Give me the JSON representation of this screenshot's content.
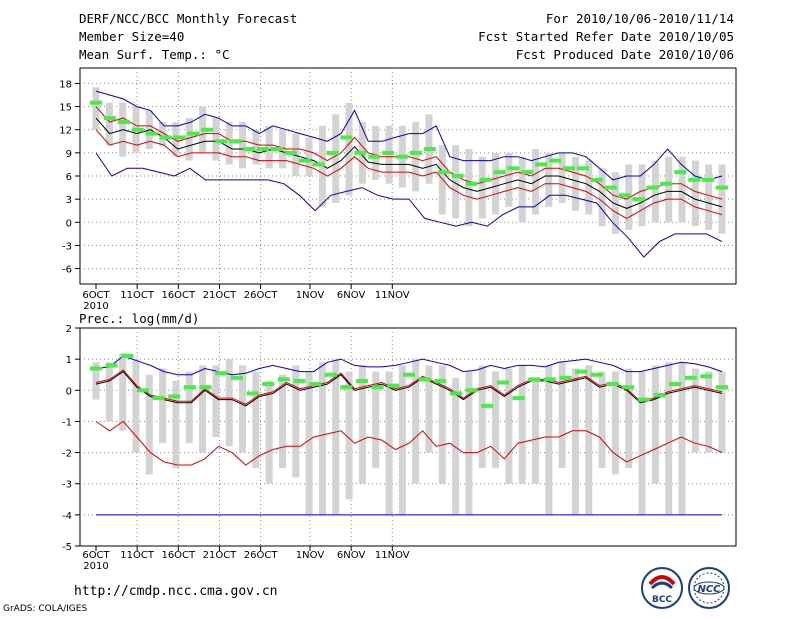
{
  "header": {
    "title": "DERF/NCC/BCC Monthly Forecast",
    "member_size": "Member Size=40",
    "variable": "Mean Surf. Temp.: °C",
    "period": "For 2010/10/06-2010/11/14",
    "started": "Fcst Started Refer Date 2010/10/05",
    "produced": "Fcst Produced Date 2010/10/06"
  },
  "footer": {
    "url": "http://cmdp.ncc.cma.gov.cn",
    "credit": "GrADS: COLA/IGES",
    "logo_left_text": "BCC",
    "logo_right_text": "NCC"
  },
  "colors": {
    "box": "#d3d3d3",
    "mean": "#000000",
    "red": "#dd0000",
    "blue": "#0000cc",
    "green": "#44ee44",
    "grid": "#888888"
  },
  "chart_data": [
    {
      "type": "box",
      "title": "Mean Surf. Temp.: °C",
      "ylim": [
        -8,
        20
      ],
      "yticks": [
        -6,
        -3,
        0,
        3,
        6,
        9,
        12,
        15,
        18
      ],
      "xtick_labels": [
        "6OCT",
        "11OCT",
        "16OCT",
        "21OCT",
        "26OCT",
        "1NOV",
        "6NOV",
        "11NOV"
      ],
      "xtick_days": [
        1,
        6,
        11,
        16,
        21,
        27,
        32,
        37
      ],
      "year_label": "2010",
      "days": 40,
      "series": [
        {
          "name": "box_high",
          "values": [
            17.5,
            15.5,
            15.5,
            15,
            14.5,
            13,
            13,
            13.5,
            15,
            13.5,
            13,
            13,
            12,
            12.5,
            12,
            11.5,
            11,
            12.5,
            14,
            15.5,
            13,
            12.5,
            12.5,
            12.5,
            13,
            14,
            10,
            10,
            9.5,
            8.5,
            9,
            9,
            8.5,
            9.5,
            9,
            9,
            8.5,
            8,
            7,
            6.5,
            7.5,
            7.5,
            8,
            8.5,
            8.5,
            8,
            7.5,
            7.5
          ]
        },
        {
          "name": "box_low",
          "values": [
            12,
            10,
            8.5,
            9,
            9.5,
            10,
            8.5,
            8,
            9,
            8,
            7.5,
            7,
            7.5,
            7,
            7,
            6,
            6,
            2,
            2.5,
            3.5,
            5,
            5.5,
            5,
            4.5,
            4,
            5,
            1,
            0.5,
            -0.5,
            0.5,
            1,
            2,
            0,
            1,
            2,
            2.5,
            1.5,
            1,
            -0.5,
            -1.5,
            -1,
            -0.5,
            0,
            0,
            0,
            -0.5,
            -1,
            -1.5
          ]
        },
        {
          "name": "mean",
          "values": [
            13.5,
            11.5,
            12,
            11.5,
            12,
            11,
            9.5,
            10,
            10.5,
            10.5,
            9.5,
            9.5,
            9,
            9.5,
            9,
            8.5,
            8,
            7,
            8,
            9.8,
            7.8,
            7.5,
            7.5,
            7.5,
            7,
            7.5,
            5.5,
            4.5,
            4,
            4.5,
            5,
            5.5,
            5,
            6,
            6,
            5.5,
            5,
            4,
            2.5,
            1.8,
            2.5,
            3.5,
            4,
            4,
            3,
            2.5,
            2
          ]
        },
        {
          "name": "red_upper",
          "values": [
            15,
            13,
            13.5,
            12.5,
            12.5,
            11.5,
            10.5,
            11,
            11.5,
            11.5,
            10.5,
            10.5,
            10,
            10,
            9.5,
            9.5,
            9,
            8,
            9,
            11,
            9,
            8.5,
            8.5,
            8.5,
            8,
            8.5,
            6.5,
            5.5,
            5,
            5.5,
            6,
            6.5,
            6,
            7,
            7,
            6.5,
            6,
            5,
            3.5,
            3,
            4,
            4.5,
            5,
            5,
            4,
            3.5,
            3
          ]
        },
        {
          "name": "red_lower",
          "values": [
            12,
            10,
            10.5,
            10,
            10.5,
            10,
            8.5,
            9,
            9,
            9,
            8.5,
            8.5,
            8,
            8,
            8,
            7.5,
            7,
            6,
            7,
            8.5,
            7,
            6.5,
            6.5,
            6.5,
            6,
            6.5,
            4.5,
            3.5,
            3,
            3.5,
            4,
            4.5,
            4,
            5,
            5,
            4.5,
            4,
            3,
            1.5,
            0.5,
            1.5,
            2.5,
            3,
            3,
            2,
            1.5,
            1
          ]
        },
        {
          "name": "blue_upper",
          "values": [
            17,
            16.5,
            16,
            15,
            14.5,
            12.5,
            12.5,
            13,
            14,
            13.5,
            12.5,
            12.5,
            11.5,
            12.5,
            12,
            11.5,
            11,
            10.5,
            11.5,
            14.5,
            10.5,
            10.5,
            11,
            11.5,
            11.5,
            12.5,
            8.5,
            8,
            8,
            8,
            8.5,
            8.5,
            8,
            8.5,
            9,
            9,
            8.5,
            7,
            5.5,
            6,
            6,
            7.5,
            9.5,
            7.5,
            6,
            5.5,
            6
          ]
        },
        {
          "name": "blue_lower",
          "values": [
            9,
            6,
            7,
            7,
            6.5,
            6,
            7,
            5.5,
            5.5,
            5.5,
            5.5,
            5.5,
            5,
            3.5,
            1.5,
            3.5,
            4,
            4.5,
            3.5,
            3,
            3,
            0.5,
            0,
            -0.5,
            0,
            -0.5,
            1,
            2,
            2,
            3.5,
            3.5,
            3,
            2.5,
            0,
            -2,
            -4.5,
            -2.5,
            -1.5,
            -1.5,
            -1.5,
            -2.5
          ]
        },
        {
          "name": "observed",
          "values": [
            15.5,
            13.5,
            13,
            12,
            11.5,
            11,
            11,
            11.5,
            12,
            10.5,
            10.5,
            9.5,
            9.5,
            9.5,
            9,
            8,
            7.5,
            9,
            11,
            9,
            8.5,
            9,
            8.5,
            9,
            9.5,
            6.5,
            6,
            5,
            5.5,
            6.5,
            7,
            6.5,
            7.5,
            8,
            7,
            7,
            5.5,
            4.5,
            3.5,
            3,
            4.5,
            5,
            6.5,
            5.5,
            5.5,
            4.5
          ]
        }
      ]
    },
    {
      "type": "box",
      "title": "Prec.: log(mm/d)",
      "ylim": [
        -5,
        2
      ],
      "yticks": [
        -5,
        -4,
        -3,
        -2,
        -1,
        0,
        1,
        2
      ],
      "xtick_labels": [
        "6OCT",
        "11OCT",
        "16OCT",
        "21OCT",
        "26OCT",
        "1NOV",
        "6NOV",
        "11NOV"
      ],
      "xtick_days": [
        1,
        6,
        11,
        16,
        21,
        27,
        32,
        37
      ],
      "year_label": "2010",
      "days": 40,
      "series": [
        {
          "name": "box_high",
          "values": [
            0.9,
            0.9,
            1.2,
            1.0,
            0.5,
            0.7,
            0.3,
            0.6,
            0.8,
            0.8,
            1.0,
            0.8,
            0.6,
            0.3,
            0.5,
            0.8,
            0.6,
            0.9,
            1.0,
            0.6,
            0.8,
            0.6,
            0.6,
            0.8,
            1.0,
            0.8,
            0.8,
            0.4,
            0.6,
            0.8,
            0.6,
            0.7,
            0.8,
            0.4,
            0.8,
            0.9,
            0.7,
            0.8,
            0.6,
            0.6,
            0.7,
            0.6,
            0.8,
            0.9,
            0.9,
            0.7,
            0.6,
            0.6
          ]
        },
        {
          "name": "box_low",
          "values": [
            -0.3,
            -1.0,
            -1.3,
            -2.0,
            -2.7,
            -1.7,
            -2.5,
            -1.7,
            -2.0,
            -1.5,
            -1.8,
            -2.0,
            -2.5,
            -3.0,
            -2.5,
            -2.8,
            -4.0,
            -4.0,
            -4.0,
            -3.5,
            -3.0,
            -2.5,
            -4.0,
            -4.0,
            -3.0,
            -2.0,
            -3.0,
            -4.0,
            -4.0,
            -2.5,
            -2.5,
            -3.0,
            -3.0,
            -3.0,
            -4.0,
            -2.5,
            -4.0,
            -4.0,
            -2.5,
            -2.7,
            -2.5,
            -4.0,
            -3.0,
            -4.0,
            -4.0,
            -2.0,
            -2.0,
            -2.0
          ]
        },
        {
          "name": "mean",
          "values": [
            0.2,
            0.3,
            0.6,
            0.1,
            -0.2,
            -0.3,
            -0.4,
            -0.4,
            0.0,
            -0.3,
            -0.3,
            -0.5,
            -0.2,
            -0.1,
            0.2,
            0.0,
            0.1,
            0.2,
            0.5,
            0.0,
            0.1,
            0.2,
            0.0,
            0.1,
            0.4,
            0.2,
            0.0,
            -0.3,
            0.0,
            0.1,
            -0.2,
            0.1,
            0.3,
            0.3,
            0.2,
            0.3,
            0.4,
            0.1,
            0.2,
            0.0,
            -0.4,
            -0.3,
            -0.1,
            0.0,
            0.1,
            0.0,
            -0.1
          ]
        },
        {
          "name": "red_upper",
          "values": [
            0.25,
            0.35,
            0.65,
            0.15,
            -0.15,
            -0.25,
            -0.35,
            -0.35,
            0.05,
            -0.25,
            -0.25,
            -0.45,
            -0.15,
            -0.05,
            0.25,
            0.05,
            0.15,
            0.25,
            0.55,
            0.05,
            0.15,
            0.25,
            0.05,
            0.15,
            0.45,
            0.25,
            0.05,
            -0.25,
            0.05,
            0.15,
            -0.15,
            0.15,
            0.35,
            0.35,
            0.25,
            0.35,
            0.45,
            0.15,
            0.25,
            0.05,
            -0.35,
            -0.25,
            -0.05,
            0.05,
            0.15,
            0.05,
            -0.05
          ]
        },
        {
          "name": "red_lower",
          "values": [
            -1.0,
            -1.3,
            -1.0,
            -1.5,
            -2.0,
            -2.3,
            -2.4,
            -2.4,
            -2.2,
            -1.8,
            -2.0,
            -2.4,
            -2.1,
            -1.9,
            -1.8,
            -1.8,
            -1.5,
            -1.4,
            -1.3,
            -1.7,
            -1.5,
            -1.6,
            -1.9,
            -1.7,
            -1.3,
            -1.8,
            -1.7,
            -2.0,
            -2.0,
            -1.8,
            -2.2,
            -1.7,
            -1.6,
            -1.5,
            -1.5,
            -1.3,
            -1.3,
            -1.5,
            -2.0,
            -2.3,
            -2.1,
            -1.9,
            -1.7,
            -1.5,
            -1.7,
            -1.8,
            -2.0
          ]
        },
        {
          "name": "blue_upper",
          "values": [
            0.7,
            0.75,
            1.1,
            0.95,
            0.8,
            0.6,
            0.5,
            0.5,
            0.7,
            0.6,
            0.5,
            0.55,
            0.7,
            0.8,
            0.7,
            0.6,
            0.6,
            0.9,
            1.0,
            0.8,
            0.75,
            0.75,
            0.8,
            0.9,
            1.0,
            0.9,
            0.8,
            0.6,
            0.65,
            0.8,
            0.7,
            0.8,
            0.8,
            0.75,
            0.9,
            0.95,
            1.0,
            0.9,
            0.8,
            0.6,
            0.6,
            0.7,
            0.8,
            0.9,
            0.85,
            0.75,
            0.6
          ]
        },
        {
          "name": "blue_lower",
          "values": [
            -4.0,
            -4.0,
            -4.0,
            -4.0,
            -4.0,
            -4.0,
            -4.0,
            -4.0,
            -4.0,
            -4.0,
            -4.0,
            -4.0,
            -4.0,
            -4.0,
            -4.0,
            -4.0,
            -4.0,
            -4.0,
            -4.0,
            -4.0,
            -4.0,
            -4.0,
            -4.0,
            -4.0,
            -4.0,
            -4.0,
            -4.0,
            -4.0,
            -4.0,
            -4.0,
            -4.0,
            -4.0,
            -4.0,
            -4.0,
            -4.0,
            -4.0,
            -4.0,
            -4.0,
            -4.0,
            -4.0,
            -4.0,
            -4.0,
            -4.0,
            -4.0,
            -4.0,
            -4.0,
            -4.0
          ]
        },
        {
          "name": "observed",
          "values": [
            0.7,
            0.8,
            1.1,
            0.0,
            -0.25,
            -0.2,
            0.1,
            0.1,
            0.55,
            0.4,
            -0.1,
            0.2,
            0.35,
            0.3,
            0.2,
            0.5,
            0.1,
            0.3,
            0.1,
            0.15,
            0.5,
            0.35,
            0.3,
            -0.1,
            0.0,
            -0.5,
            0.25,
            -0.25,
            0.35,
            0.35,
            0.4,
            0.6,
            0.5,
            0.2,
            0.1,
            -0.3,
            -0.15,
            0.2,
            0.4,
            0.45,
            0.1
          ]
        }
      ]
    }
  ]
}
